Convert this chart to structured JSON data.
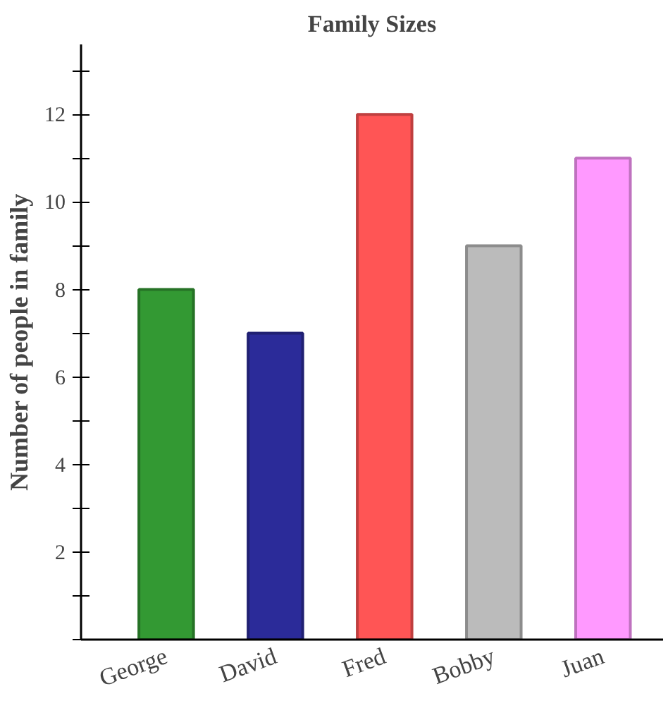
{
  "chart_data": {
    "type": "bar",
    "title": "Family Sizes",
    "ylabel": "Number of people in family",
    "categories": [
      "George",
      "David",
      "Fred",
      "Bobby",
      "Juan"
    ],
    "values": [
      8,
      7,
      12,
      9,
      11
    ],
    "colors": [
      "#339933",
      "#2b2b99",
      "#ff5555",
      "#bbbbbb",
      "#ff99ff"
    ],
    "ylim": [
      0,
      13.6
    ],
    "yticks": [
      {
        "value": 0,
        "label": null
      },
      {
        "value": 1,
        "label": null
      },
      2,
      {
        "value": 3,
        "label": null
      },
      4,
      {
        "value": 5,
        "label": null
      },
      6,
      {
        "value": 7,
        "label": null
      },
      8,
      {
        "value": 9,
        "label": null
      },
      10,
      {
        "value": 11,
        "label": null
      },
      12,
      {
        "value": 13,
        "label": null
      }
    ]
  }
}
